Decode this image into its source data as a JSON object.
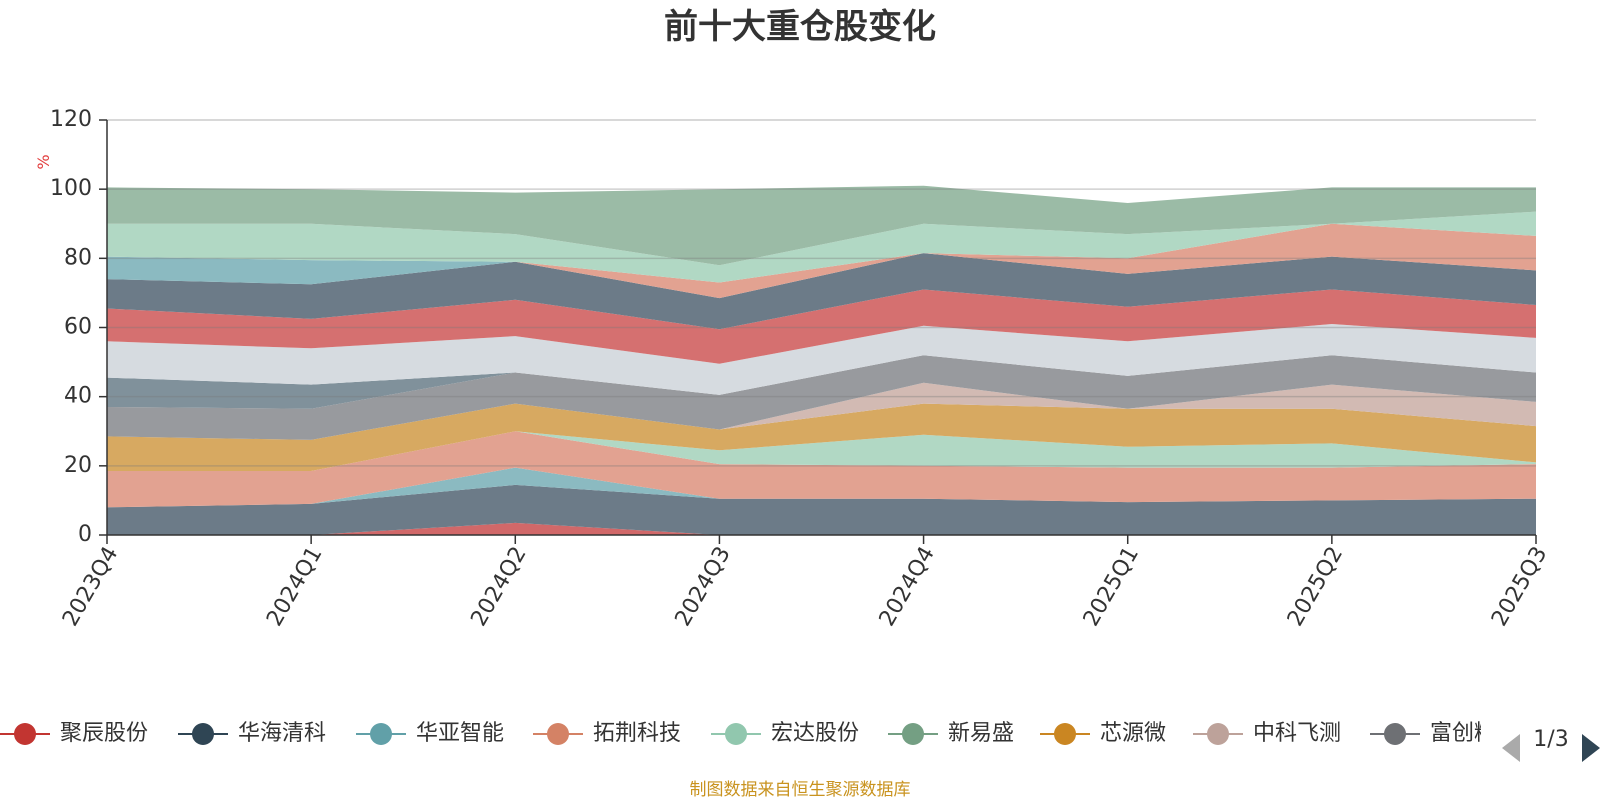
{
  "chart_data": {
    "type": "area",
    "stacked": true,
    "title": "前十大重仓股变化",
    "y_unit": "%",
    "ylim": [
      0,
      120
    ],
    "yticks": [
      0,
      20,
      40,
      60,
      80,
      100,
      120
    ],
    "grid": true,
    "legend_position": "bottom",
    "legend_page": "1/3",
    "x": [
      "2023Q4",
      "2024Q1",
      "2024Q2",
      "2024Q3",
      "2024Q4",
      "2025Q1",
      "2025Q2",
      "2025Q3"
    ],
    "series": [
      {
        "name": "",
        "color": "#d16869",
        "values": [
          0,
          0,
          3.5,
          0,
          0,
          0,
          0,
          0
        ]
      },
      {
        "name": "",
        "color": "#6c7b88",
        "values": [
          8,
          9,
          11,
          10.5,
          10.5,
          9.5,
          10,
          10.5
        ]
      },
      {
        "name": "",
        "color": "#8bbac1",
        "values": [
          0,
          0,
          5,
          0,
          0,
          0,
          0,
          0
        ]
      },
      {
        "name": "",
        "color": "#e2a291",
        "values": [
          10.5,
          9.5,
          10.5,
          10,
          9.5,
          10,
          9.5,
          10
        ]
      },
      {
        "name": "",
        "color": "#b1d8c4",
        "values": [
          0,
          0,
          0,
          4,
          9,
          6,
          7,
          0.5
        ]
      },
      {
        "name": "",
        "color": "#d7a961",
        "values": [
          10,
          9,
          8,
          6,
          9,
          11,
          10,
          10.5
        ]
      },
      {
        "name": "",
        "color": "#d2bab3",
        "values": [
          0,
          0,
          0,
          0,
          6,
          0,
          7,
          7
        ]
      },
      {
        "name": "",
        "color": "#989a9e",
        "values": [
          8.5,
          9,
          9,
          10,
          8,
          9.5,
          8.5,
          8.5
        ]
      },
      {
        "name": "",
        "color": "#80919b",
        "values": [
          8.5,
          7,
          0,
          0,
          0,
          0,
          0,
          0
        ]
      },
      {
        "name": "",
        "color": "#d6dbe0",
        "values": [
          10.5,
          10.5,
          10.5,
          9,
          8.5,
          10,
          9,
          10
        ]
      },
      {
        "name": "",
        "color": "#d57070",
        "values": [
          9.5,
          8.5,
          10.5,
          10,
          10.5,
          10,
          10,
          9.5
        ]
      },
      {
        "name": "",
        "color": "#6c7b88",
        "values": [
          8.5,
          10,
          11,
          9,
          10.5,
          9.5,
          9.5,
          10
        ]
      },
      {
        "name": "",
        "color": "#8bbac1",
        "values": [
          6.5,
          7,
          0,
          0,
          0,
          0,
          0,
          0
        ]
      },
      {
        "name": "",
        "color": "#e2a291",
        "values": [
          0,
          0,
          0,
          4.5,
          0,
          4.5,
          9.5,
          10
        ]
      },
      {
        "name": "",
        "color": "#b1d8c4",
        "values": [
          9.5,
          10.5,
          8,
          5,
          8.5,
          7,
          0,
          7
        ]
      },
      {
        "name": "",
        "color": "#9bbba6",
        "values": [
          10.5,
          10,
          12,
          22,
          11,
          9,
          10.5,
          7
        ]
      }
    ],
    "legend": [
      {
        "name": "聚辰股份",
        "color": "#c23531"
      },
      {
        "name": "华海清科",
        "color": "#2f4554"
      },
      {
        "name": "华亚智能",
        "color": "#61a0a8"
      },
      {
        "name": "拓荆科技",
        "color": "#d48265"
      },
      {
        "name": "宏达股份",
        "color": "#91c7ae"
      },
      {
        "name": "新易盛",
        "color": "#749f83"
      },
      {
        "name": "芯源微",
        "color": "#ca8622"
      },
      {
        "name": "中科飞测",
        "color": "#bda29a"
      },
      {
        "name": "富创精",
        "color": "#6e7074"
      }
    ]
  },
  "footer": {
    "source": "制图数据来自恒生聚源数据库"
  }
}
